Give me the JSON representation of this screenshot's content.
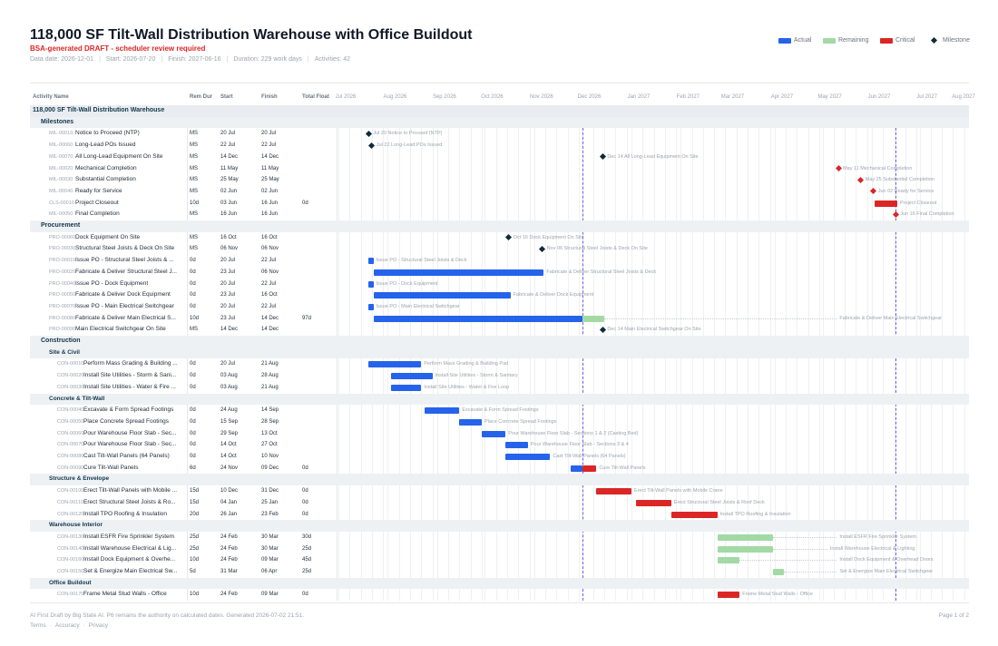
{
  "title": "118,000 SF Tilt-Wall Distribution Warehouse with Office Buildout",
  "draft_note": "BSA-generated DRAFT - scheduler review required",
  "meta": {
    "data_date": "Data date: 2026-12-01",
    "start": "Start: 2026-07-20",
    "finish": "Finish: 2027-06-16",
    "duration": "Duration: 229 work days",
    "activities": "Activities: 42"
  },
  "legend": {
    "actual": "Actual",
    "remaining": "Remaining",
    "critical": "Critical",
    "milestone": "Milestone"
  },
  "colors": {
    "actual": "#2563eb",
    "remaining": "#a3d9a5",
    "critical": "#dc2626",
    "milestone": "#0f2b3a"
  },
  "columns": {
    "activity_name": "Activity Name",
    "rem_dur": "Rem Dur",
    "start": "Start",
    "finish": "Finish",
    "total_float": "Total Float"
  },
  "months": [
    "Jul 2026",
    "Aug 2026",
    "Sep 2026",
    "Oct 2026",
    "Nov 2026",
    "Dec 2026",
    "Jan 2027",
    "Feb 2027",
    "Mar 2027",
    "Apr 2027",
    "May 2027",
    "Jun 2027",
    "Jul 2027",
    "Aug 2027"
  ],
  "timeline": {
    "start": "2026-07-01",
    "end": "2027-08-01",
    "data_date": "2026-12-01",
    "project_finish": "2027-06-16"
  },
  "rows": [
    {
      "kind": "group",
      "level": 0,
      "label": "118,000 SF Tilt-Wall Distribution Warehouse"
    },
    {
      "kind": "group",
      "level": 1,
      "label": "Milestones"
    },
    {
      "kind": "task",
      "indent": 1,
      "code": "MIL-00010",
      "name": "Notice to Proceed (NTP)",
      "rem": "MS",
      "start": "20 Jul",
      "finish": "20 Jul",
      "float": "",
      "bar": {
        "type": "milestone",
        "style": "normal",
        "date": "2026-07-20"
      },
      "bar_label": "Jul 20  Notice to Proceed (NTP)"
    },
    {
      "kind": "task",
      "indent": 1,
      "code": "MIL-00060",
      "name": "Long-Lead POs Issued",
      "rem": "MS",
      "start": "22 Jul",
      "finish": "22 Jul",
      "float": "",
      "bar": {
        "type": "milestone",
        "style": "normal",
        "date": "2026-07-22"
      },
      "bar_label": "Jul 22  Long-Lead POs Issued"
    },
    {
      "kind": "task",
      "indent": 1,
      "code": "MIL-00070",
      "name": "All Long-Lead Equipment On Site",
      "rem": "MS",
      "start": "14 Dec",
      "finish": "14 Dec",
      "float": "",
      "bar": {
        "type": "milestone",
        "style": "normal",
        "date": "2026-12-14"
      },
      "bar_label": "Dec 14  All Long-Lead Equipment On Site"
    },
    {
      "kind": "task",
      "indent": 1,
      "code": "MIL-00020",
      "name": "Mechanical Completion",
      "rem": "MS",
      "start": "11 May",
      "finish": "11 May",
      "float": "",
      "bar": {
        "type": "milestone",
        "style": "critical",
        "date": "2027-05-11"
      },
      "bar_label": "May 11  Mechanical Completion"
    },
    {
      "kind": "task",
      "indent": 1,
      "code": "MIL-00030",
      "name": "Substantial Completion",
      "rem": "MS",
      "start": "25 May",
      "finish": "25 May",
      "float": "",
      "bar": {
        "type": "milestone",
        "style": "critical",
        "date": "2027-05-25"
      },
      "bar_label": "May 25  Substantial Completion"
    },
    {
      "kind": "task",
      "indent": 1,
      "code": "MIL-00040",
      "name": "Ready for Service",
      "rem": "MS",
      "start": "02 Jun",
      "finish": "02 Jun",
      "float": "",
      "bar": {
        "type": "milestone",
        "style": "critical",
        "date": "2027-06-02"
      },
      "bar_label": "Jun 02  Ready for Service"
    },
    {
      "kind": "task",
      "indent": 1,
      "code": "CLS-00010",
      "name": "Project Closeout",
      "rem": "10d",
      "start": "03 Jun",
      "finish": "16 Jun",
      "float": "0d",
      "bar": {
        "type": "bar",
        "style": "critical",
        "start": "2027-06-03",
        "end": "2027-06-16"
      },
      "bar_label": "Project Closeout"
    },
    {
      "kind": "task",
      "indent": 1,
      "code": "MIL-00050",
      "name": "Final Completion",
      "rem": "MS",
      "start": "16 Jun",
      "finish": "16 Jun",
      "float": "",
      "bar": {
        "type": "milestone",
        "style": "critical",
        "date": "2027-06-16"
      },
      "bar_label": "Jun 16  Final Completion"
    },
    {
      "kind": "group",
      "level": 1,
      "label": "Procurement"
    },
    {
      "kind": "task",
      "indent": 1,
      "code": "PRO-00060",
      "name": "Dock Equipment On Site",
      "rem": "MS",
      "start": "16 Oct",
      "finish": "16 Oct",
      "float": "",
      "bar": {
        "type": "milestone",
        "style": "normal",
        "date": "2026-10-16"
      },
      "bar_label": "Oct 16  Dock Equipment On Site"
    },
    {
      "kind": "task",
      "indent": 1,
      "code": "PRO-00030",
      "name": "Structural Steel Joists & Deck On Site",
      "rem": "MS",
      "start": "06 Nov",
      "finish": "06 Nov",
      "float": "",
      "bar": {
        "type": "milestone",
        "style": "normal",
        "date": "2026-11-06"
      },
      "bar_label": "Nov 06  Structural Steel Joists & Deck On Site"
    },
    {
      "kind": "task",
      "indent": 1,
      "code": "PRO-00010",
      "name": "Issue PO - Structural Steel Joists & ...",
      "rem": "0d",
      "start": "20 Jul",
      "finish": "22 Jul",
      "float": "",
      "bar": {
        "type": "bar",
        "style": "actual",
        "start": "2026-07-20",
        "end": "2026-07-22"
      },
      "bar_label": "Issue PO - Structural Steel Joists & Deck"
    },
    {
      "kind": "task",
      "indent": 1,
      "code": "PRO-00020",
      "name": "Fabricate & Deliver Structural Steel J...",
      "rem": "0d",
      "start": "23 Jul",
      "finish": "06 Nov",
      "float": "",
      "bar": {
        "type": "bar",
        "style": "actual",
        "start": "2026-07-23",
        "end": "2026-11-06"
      },
      "bar_label": "Fabricate & Deliver Structural Steel Joists & Deck"
    },
    {
      "kind": "task",
      "indent": 1,
      "code": "PRO-00040",
      "name": "Issue PO - Dock Equipment",
      "rem": "0d",
      "start": "20 Jul",
      "finish": "22 Jul",
      "float": "",
      "bar": {
        "type": "bar",
        "style": "actual",
        "start": "2026-07-20",
        "end": "2026-07-22"
      },
      "bar_label": "Issue PO - Dock Equipment"
    },
    {
      "kind": "task",
      "indent": 1,
      "code": "PRO-00050",
      "name": "Fabricate & Deliver Dock Equipment",
      "rem": "0d",
      "start": "23 Jul",
      "finish": "16 Oct",
      "float": "",
      "bar": {
        "type": "bar",
        "style": "actual",
        "start": "2026-07-23",
        "end": "2026-10-16"
      },
      "bar_label": "Fabricate & Deliver Dock Equipment"
    },
    {
      "kind": "task",
      "indent": 1,
      "code": "PRO-00070",
      "name": "Issue PO - Main Electrical Switchgear",
      "rem": "0d",
      "start": "20 Jul",
      "finish": "22 Jul",
      "float": "",
      "bar": {
        "type": "bar",
        "style": "actual",
        "start": "2026-07-20",
        "end": "2026-07-22"
      },
      "bar_label": "Issue PO - Main Electrical Switchgear"
    },
    {
      "kind": "task",
      "indent": 1,
      "code": "PRO-00080",
      "name": "Fabricate & Deliver Main Electrical S...",
      "rem": "10d",
      "start": "23 Jul",
      "finish": "14 Dec",
      "float": "97d",
      "bar": {
        "type": "split",
        "start": "2026-07-23",
        "mid": "2026-12-01",
        "end": "2026-12-14",
        "float_end": "2027-05-10"
      },
      "bar_label": "Fabricate & Deliver Main Electrical Switchgear"
    },
    {
      "kind": "task",
      "indent": 1,
      "code": "PRO-00090",
      "name": "Main Electrical Switchgear On Site",
      "rem": "MS",
      "start": "14 Dec",
      "finish": "14 Dec",
      "float": "",
      "bar": {
        "type": "milestone",
        "style": "normal",
        "date": "2026-12-14"
      },
      "bar_label": "Dec 14  Main Electrical Switchgear On Site"
    },
    {
      "kind": "group",
      "level": 1,
      "label": "Construction"
    },
    {
      "kind": "group",
      "level": 2,
      "label": "Site & Civil"
    },
    {
      "kind": "task",
      "indent": 2,
      "code": "CON-00010",
      "name": "Perform Mass Grading & Building ...",
      "rem": "0d",
      "start": "20 Jul",
      "finish": "21 Aug",
      "float": "",
      "bar": {
        "type": "bar",
        "style": "actual",
        "start": "2026-07-20",
        "end": "2026-08-21"
      },
      "bar_label": "Perform Mass Grading & Building Pad"
    },
    {
      "kind": "task",
      "indent": 2,
      "code": "CON-00020",
      "name": "Install Site Utilities - Storm & Sani...",
      "rem": "0d",
      "start": "03 Aug",
      "finish": "28 Aug",
      "float": "",
      "bar": {
        "type": "bar",
        "style": "actual",
        "start": "2026-08-03",
        "end": "2026-08-28"
      },
      "bar_label": "Install Site Utilities - Storm & Sanitary"
    },
    {
      "kind": "task",
      "indent": 2,
      "code": "CON-00030",
      "name": "Install Site Utilities - Water & Fire ...",
      "rem": "0d",
      "start": "03 Aug",
      "finish": "21 Aug",
      "float": "",
      "bar": {
        "type": "bar",
        "style": "actual",
        "start": "2026-08-03",
        "end": "2026-08-21"
      },
      "bar_label": "Install Site Utilities - Water & Fire Loop"
    },
    {
      "kind": "group",
      "level": 2,
      "label": "Concrete & Tilt-Wall"
    },
    {
      "kind": "task",
      "indent": 2,
      "code": "CON-00040",
      "name": "Excavate & Form Spread Footings",
      "rem": "0d",
      "start": "24 Aug",
      "finish": "14 Sep",
      "float": "",
      "bar": {
        "type": "bar",
        "style": "actual",
        "start": "2026-08-24",
        "end": "2026-09-14"
      },
      "bar_label": "Excavate & Form Spread Footings"
    },
    {
      "kind": "task",
      "indent": 2,
      "code": "CON-00050",
      "name": "Place Concrete Spread Footings",
      "rem": "0d",
      "start": "15 Sep",
      "finish": "28 Sep",
      "float": "",
      "bar": {
        "type": "bar",
        "style": "actual",
        "start": "2026-09-15",
        "end": "2026-09-28"
      },
      "bar_label": "Place Concrete Spread Footings"
    },
    {
      "kind": "task",
      "indent": 2,
      "code": "CON-00060",
      "name": "Pour Warehouse Floor Slab - Sec...",
      "rem": "0d",
      "start": "29 Sep",
      "finish": "13 Oct",
      "float": "",
      "bar": {
        "type": "bar",
        "style": "actual",
        "start": "2026-09-29",
        "end": "2026-10-13"
      },
      "bar_label": "Pour Warehouse Floor Slab - Sections 1 & 2 (Casting Bed)"
    },
    {
      "kind": "task",
      "indent": 2,
      "code": "CON-00070",
      "name": "Pour Warehouse Floor Slab - Sec...",
      "rem": "0d",
      "start": "14 Oct",
      "finish": "27 Oct",
      "float": "",
      "bar": {
        "type": "bar",
        "style": "actual",
        "start": "2026-10-14",
        "end": "2026-10-27"
      },
      "bar_label": "Pour Warehouse Floor Slab - Sections 3 & 4"
    },
    {
      "kind": "task",
      "indent": 2,
      "code": "CON-00080",
      "name": "Cast Tilt-Wall Panels (64 Panels)",
      "rem": "0d",
      "start": "14 Oct",
      "finish": "10 Nov",
      "float": "",
      "bar": {
        "type": "bar",
        "style": "actual",
        "start": "2026-10-14",
        "end": "2026-11-10"
      },
      "bar_label": "Cast Tilt-Wall Panels (64 Panels)"
    },
    {
      "kind": "task",
      "indent": 2,
      "code": "CON-00090",
      "name": "Cure Tilt-Wall Panels",
      "rem": "6d",
      "start": "24 Nov",
      "finish": "09 Dec",
      "float": "0d",
      "bar": {
        "type": "split2",
        "start": "2026-11-24",
        "mid": "2026-12-01",
        "end": "2026-12-09"
      },
      "bar_label": "Cure Tilt-Wall Panels"
    },
    {
      "kind": "group",
      "level": 2,
      "label": "Structure & Envelope"
    },
    {
      "kind": "task",
      "indent": 2,
      "code": "CON-00100",
      "name": "Erect Tilt-Wall Panels with Mobile ...",
      "rem": "15d",
      "start": "10 Dec",
      "finish": "31 Dec",
      "float": "0d",
      "bar": {
        "type": "bar",
        "style": "critical",
        "start": "2026-12-10",
        "end": "2026-12-31"
      },
      "bar_label": "Erect Tilt-Wall Panels with Mobile Crane"
    },
    {
      "kind": "task",
      "indent": 2,
      "code": "CON-00110",
      "name": "Erect Structural Steel Joists & Ro...",
      "rem": "15d",
      "start": "04 Jan",
      "finish": "25 Jan",
      "float": "0d",
      "bar": {
        "type": "bar",
        "style": "critical",
        "start": "2027-01-04",
        "end": "2027-01-25"
      },
      "bar_label": "Erect Structural Steel Joists & Roof Deck"
    },
    {
      "kind": "task",
      "indent": 2,
      "code": "CON-00120",
      "name": "Install TPO Roofing & Insulation",
      "rem": "20d",
      "start": "26 Jan",
      "finish": "23 Feb",
      "float": "0d",
      "bar": {
        "type": "bar",
        "style": "critical",
        "start": "2027-01-26",
        "end": "2027-02-23"
      },
      "bar_label": "Install TPO Roofing & Insulation"
    },
    {
      "kind": "group",
      "level": 2,
      "label": "Warehouse Interior"
    },
    {
      "kind": "task",
      "indent": 2,
      "code": "CON-00130",
      "name": "Install ESFR Fire Sprinkler System",
      "rem": "25d",
      "start": "24 Feb",
      "finish": "30 Mar",
      "float": "30d",
      "bar": {
        "type": "float",
        "style": "remaining",
        "start": "2027-02-24",
        "end": "2027-03-30",
        "float_end": "2027-05-10"
      },
      "bar_label": "Install ESFR Fire Sprinkler System"
    },
    {
      "kind": "task",
      "indent": 2,
      "code": "CON-00140",
      "name": "Install Warehouse Electrical & Lig...",
      "rem": "25d",
      "start": "24 Feb",
      "finish": "30 Mar",
      "float": "25d",
      "bar": {
        "type": "float",
        "style": "remaining",
        "start": "2027-02-24",
        "end": "2027-03-30",
        "float_end": "2027-05-04"
      },
      "bar_label": "Install Warehouse Electrical & Lighting"
    },
    {
      "kind": "task",
      "indent": 2,
      "code": "CON-00160",
      "name": "Install Dock Equipment & Overhe...",
      "rem": "10d",
      "start": "24 Feb",
      "finish": "09 Mar",
      "float": "45d",
      "bar": {
        "type": "float",
        "style": "remaining",
        "start": "2027-02-24",
        "end": "2027-03-09",
        "float_end": "2027-05-10"
      },
      "bar_label": "Install Dock Equipment & Overhead Doors"
    },
    {
      "kind": "task",
      "indent": 2,
      "code": "CON-00150",
      "name": "Set & Energize Main Electrical Sw...",
      "rem": "5d",
      "start": "31 Mar",
      "finish": "06 Apr",
      "float": "25d",
      "bar": {
        "type": "float",
        "style": "remaining",
        "start": "2027-03-31",
        "end": "2027-04-06",
        "float_end": "2027-05-10"
      },
      "bar_label": "Set & Energize Main Electrical Switchgear"
    },
    {
      "kind": "group",
      "level": 2,
      "label": "Office Buildout"
    },
    {
      "kind": "task",
      "indent": 2,
      "code": "CON-00170",
      "name": "Frame Metal Stud Walls - Office",
      "rem": "10d",
      "start": "24 Feb",
      "finish": "09 Mar",
      "float": "0d",
      "bar": {
        "type": "bar",
        "style": "critical",
        "start": "2027-02-24",
        "end": "2027-03-09"
      },
      "bar_label": "Frame Metal Stud Walls - Office"
    }
  ],
  "footer": {
    "note": "AI First Draft by Big State AI. P6 remains the authority on calculated dates. Generated 2026-07-02 21:51.",
    "terms": "Terms",
    "accuracy": "Accuracy",
    "privacy": "Privacy",
    "page": "Page 1 of 2"
  }
}
